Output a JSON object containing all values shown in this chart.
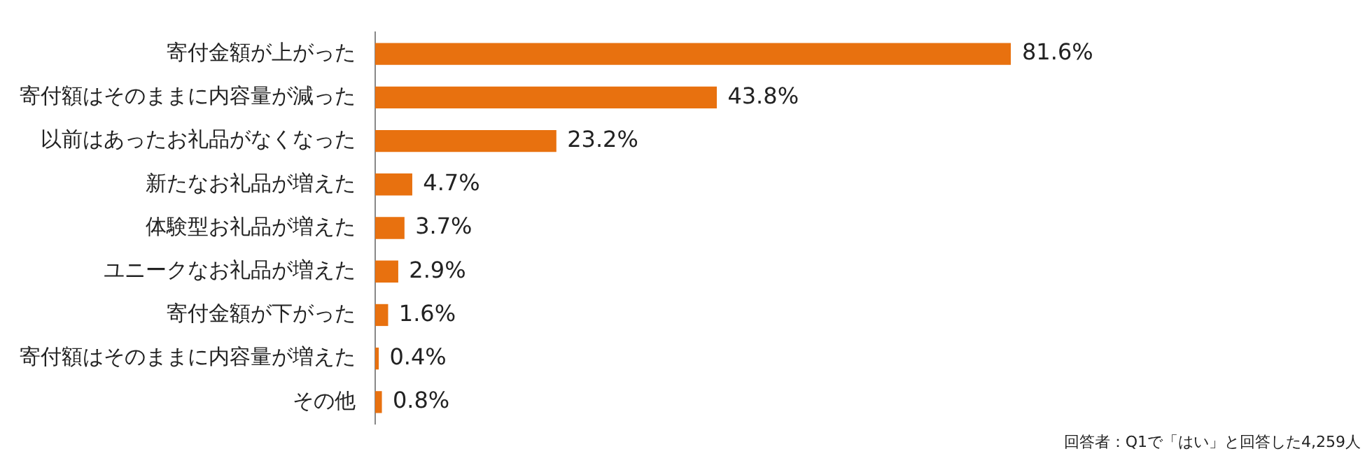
{
  "chart_data": {
    "type": "bar",
    "orientation": "horizontal",
    "categories": [
      "寄付金額が上がった",
      "寄付額はそのままに内容量が減った",
      "以前はあったお礼品がなくなった",
      "新たなお礼品が増えた",
      "体験型お礼品が増えた",
      "ユニークなお礼品が増えた",
      "寄付金額が下がった",
      "寄付額はそのままに内容量が増えた",
      "その他"
    ],
    "values": [
      81.6,
      43.8,
      23.2,
      4.7,
      3.7,
      2.9,
      1.6,
      0.4,
      0.8
    ],
    "value_labels": [
      "81.6%",
      "43.8%",
      "23.2%",
      "4.7%",
      "3.7%",
      "2.9%",
      "1.6%",
      "0.4%",
      "0.8%"
    ],
    "color": "#e8710f",
    "annotations": [
      "回答者：Q1で「はい」と回答した4,259人"
    ]
  }
}
